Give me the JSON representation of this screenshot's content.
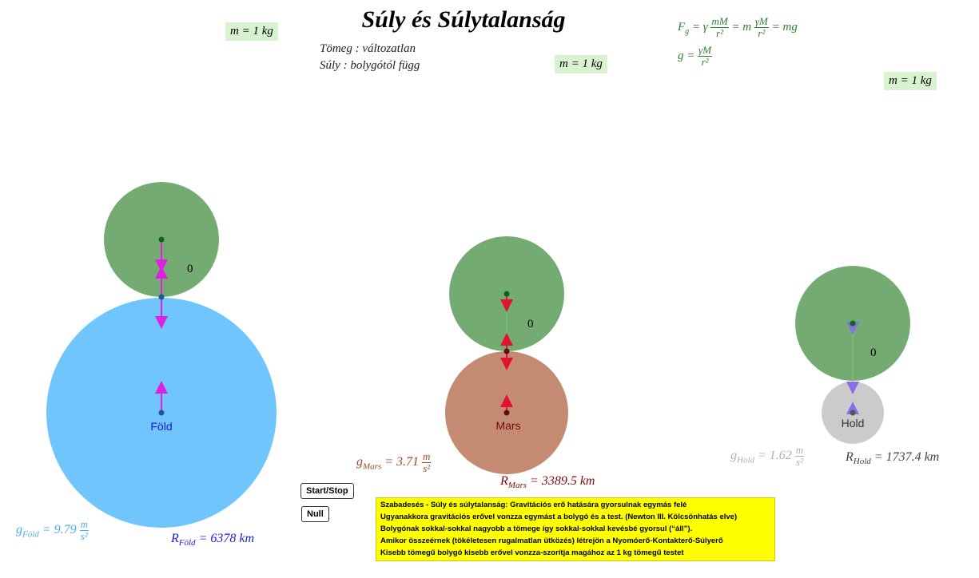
{
  "title": "Súly és Súlytalanság",
  "mass_label": "m = 1 kg",
  "notes": {
    "line1": "Tömeg :  változatlan",
    "line2": "Súly :  bolygótól függ"
  },
  "formula": {
    "line1_prefix": "F",
    "line1_sub": "g",
    "line1_a": " = γ ",
    "line1_frac_num": "mM",
    "line1_frac_den": "r²",
    "line1_b": " = m ",
    "line1_frac2_num": "γM",
    "line1_frac2_den": "r²",
    "line1_c": " = mg",
    "line2_prefix": "g = ",
    "line2_frac_num": "γM",
    "line2_frac_den": "r²"
  },
  "planets": [
    {
      "key": "fold",
      "name": "Föld",
      "g_symbol": "g",
      "g_sub": "Föld",
      "g_value": " = 9.79 ",
      "r_symbol": "R",
      "r_sub": "Föld",
      "r_value": " = 6378  km",
      "planet_color": "#70c5fc",
      "label_color": "#1a1adb",
      "g_color": "#4aaee8",
      "r_color": "#1a1adb",
      "distance_value": "0"
    },
    {
      "key": "mars",
      "name": "Mars",
      "g_symbol": "g",
      "g_sub": "Mars",
      "g_value": " = 3.71 ",
      "r_symbol": "R",
      "r_sub": "Mars",
      "r_value": " = 3389.5  km",
      "planet_color": "#c48b72",
      "label_color": "#7a0b0b",
      "g_color": "#9a4a2a",
      "r_color": "#7a0b0b",
      "distance_value": "0"
    },
    {
      "key": "hold",
      "name": "Hold",
      "g_symbol": "g",
      "g_sub": "Hold",
      "g_value": " = 1.62 ",
      "r_symbol": "R",
      "r_sub": "Hold",
      "r_value": " = 1737.4  km",
      "planet_color": "#cbcbcb",
      "label_color": "#333333",
      "g_color": "#b0b0b0",
      "r_color": "#444444",
      "distance_value": "0"
    }
  ],
  "unit": {
    "num": "m",
    "den": "s²"
  },
  "buttons": {
    "start_stop": "Start/Stop",
    "null": "Null"
  },
  "info_box": {
    "line1": "Szabadesés - Súly és súlytalanság: Gravitációs erő hatására gyorsulnak egymás felé",
    "line2": "Ugyanakkora gravitációs erővel vonzza egymást a bolygó és a test. (Newton III. Kölcsönhatás elve)",
    "line3": "Bolygónak sokkal-sokkal nagyobb a tömege így sokkal-sokkal kevésbé gyorsul (“áll”).",
    "line4": "Amikor összeérnek (tökéletesen rugalmatlan ütközés) létrejön a Nyomóerő-Kontakterő-Súlyerő",
    "line5": "Kisebb tömegű bolygó kisebb erővel vonzza-szorítja magához az 1 kg tömegű testet"
  },
  "colors": {
    "body_green": "#74ab72",
    "arrow_magenta": "#e020e0",
    "arrow_red": "#e0142e",
    "arrow_purple": "#8a6ee8",
    "mass_box_bg": "#d9f2d0",
    "formula_green": "#2e7d32",
    "info_yellow": "#ffff00"
  }
}
